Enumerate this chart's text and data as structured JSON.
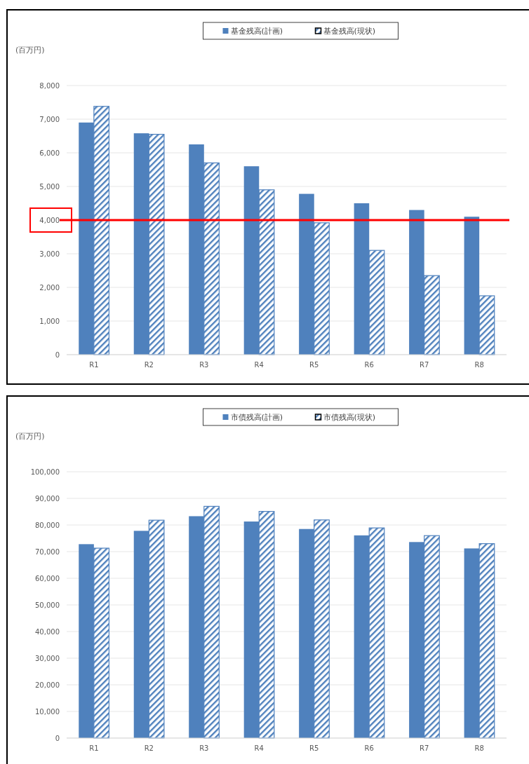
{
  "chart_data": [
    {
      "type": "bar",
      "ylabel": "(百万円)",
      "categories": [
        "R1",
        "R2",
        "R3",
        "R4",
        "R5",
        "R6",
        "R7",
        "R8"
      ],
      "series": [
        {
          "name": "基金残高(計画)",
          "color": "#4f81bd",
          "values": [
            6900,
            6580,
            6250,
            5600,
            4780,
            4500,
            4300,
            4100
          ]
        },
        {
          "name": "基金残高(現状)",
          "color": "#4f81bd",
          "values": [
            7380,
            6550,
            5700,
            4900,
            3920,
            3100,
            2350,
            1750
          ]
        }
      ],
      "ylim": [
        0,
        8000
      ],
      "yticks": [
        {
          "value": 0,
          "label": "0"
        },
        {
          "value": 1000,
          "label": "1,000"
        },
        {
          "value": 2000,
          "label": "2,000"
        },
        {
          "value": 3000,
          "label": "3,000"
        },
        {
          "value": 4000,
          "label": "4,000"
        },
        {
          "value": 5000,
          "label": "5,000"
        },
        {
          "value": 6000,
          "label": "6,000"
        },
        {
          "value": 7000,
          "label": "7,000"
        },
        {
          "value": 8000,
          "label": "8,000"
        }
      ],
      "grid": "y",
      "legend": "top",
      "ref_lines": [
        {
          "axis": "y",
          "value": 4000,
          "color": "#ff0000"
        }
      ]
    },
    {
      "type": "bar",
      "ylabel": "(百万円)",
      "categories": [
        "R1",
        "R2",
        "R3",
        "R4",
        "R5",
        "R6",
        "R7",
        "R8"
      ],
      "series": [
        {
          "name": "市債残高(計画)",
          "color": "#4f81bd",
          "values": [
            72800,
            77800,
            83300,
            81300,
            78500,
            76100,
            73600,
            71200
          ]
        },
        {
          "name": "市債残高(現状)",
          "color": "#4f81bd",
          "values": [
            71300,
            81800,
            87000,
            85100,
            81900,
            78900,
            76000,
            73000
          ]
        }
      ],
      "ylim": [
        0,
        100000
      ],
      "yticks": [
        {
          "value": 0,
          "label": "0"
        },
        {
          "value": 10000,
          "label": "10,000"
        },
        {
          "value": 20000,
          "label": "20,000"
        },
        {
          "value": 30000,
          "label": "30,000"
        },
        {
          "value": 40000,
          "label": "40,000"
        },
        {
          "value": 50000,
          "label": "50,000"
        },
        {
          "value": 60000,
          "label": "60,000"
        },
        {
          "value": 70000,
          "label": "70,000"
        },
        {
          "value": 80000,
          "label": "80,000"
        },
        {
          "value": 90000,
          "label": "90,000"
        },
        {
          "value": 100000,
          "label": "100,000"
        }
      ],
      "grid": "y",
      "legend": "top"
    }
  ]
}
